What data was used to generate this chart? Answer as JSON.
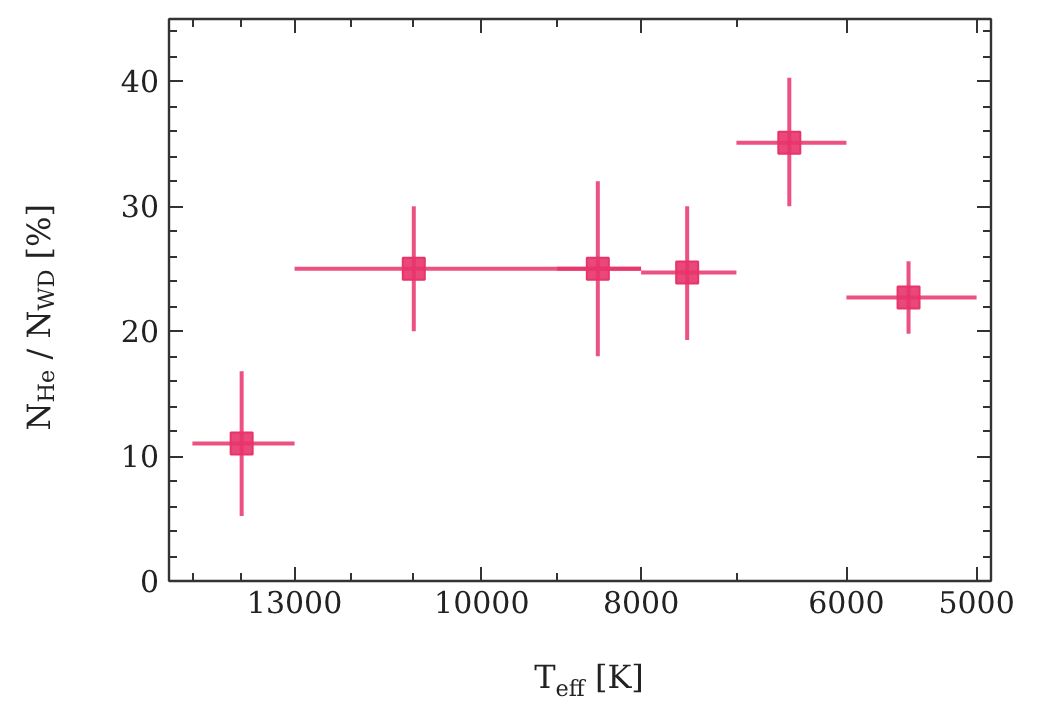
{
  "chart_data": {
    "type": "scatter",
    "xlabel": "T$_{eff}$ [K]",
    "ylabel": "N$_{He}$ / N$_{WD}$ [%]",
    "x": [
      14000,
      11000,
      8500,
      7500,
      6500,
      5500
    ],
    "series": [
      {
        "color": "#e8336b",
        "values": [
          11,
          25,
          25,
          24.7,
          35.1,
          22.7
        ],
        "errors": [
          [
            5.2,
            16.8
          ],
          [
            20,
            30
          ],
          [
            18,
            32
          ],
          [
            19.3,
            30
          ],
          [
            30,
            40.3
          ],
          [
            19.8,
            25.6
          ]
        ],
        "xerrors": [
          [
            13000,
            15000
          ],
          [
            8000,
            13000
          ],
          [
            8000,
            9000
          ],
          [
            7000,
            8000
          ],
          [
            6000,
            7000
          ],
          [
            5000,
            6000
          ]
        ]
      }
    ],
    "marker": "square",
    "log": "x",
    "grid": false,
    "xlim": [
      15500,
      4900
    ],
    "ylim": [
      0,
      45
    ],
    "xticks": [
      {
        "value": 15000,
        "label": null
      },
      {
        "value": 14000,
        "label": null
      },
      13000,
      {
        "value": 12000,
        "label": null
      },
      {
        "value": 11000,
        "label": null
      },
      10000,
      {
        "value": 9000,
        "label": null
      },
      8000,
      {
        "value": 7000,
        "label": null
      },
      6000,
      5000
    ],
    "yticks": [
      0,
      10,
      20,
      30,
      40
    ]
  }
}
